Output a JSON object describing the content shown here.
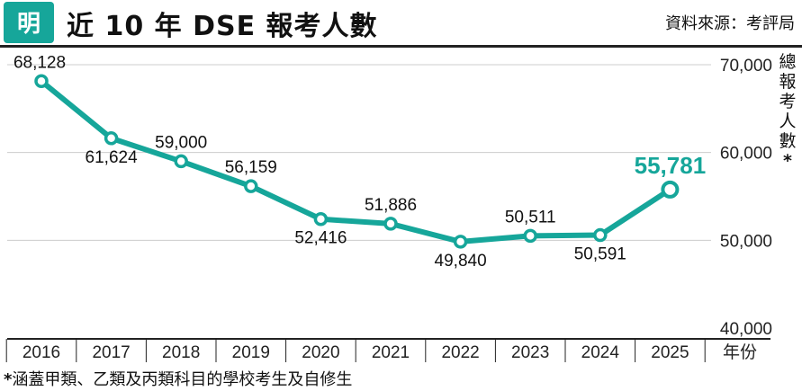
{
  "header": {
    "logo_char": "明",
    "title": "近 10 年 DSE 報考人數",
    "source": "資料來源：考評局"
  },
  "colors": {
    "accent": "#16a69a",
    "logo_bg": "#16a69a",
    "axis": "#222222",
    "gridline": "#cccccc"
  },
  "footnote": {
    "star": "*",
    "text": "涵蓋甲類、乙類及丙類科目的學校考生及自修生"
  },
  "chart_data": {
    "type": "line",
    "title": "近 10 年 DSE 報考人數",
    "xlabel": "年份",
    "ylabel": "總報考人數",
    "ylabel_chars": [
      "總",
      "報",
      "考",
      "人",
      "數",
      "*"
    ],
    "ylim": [
      40000,
      70000
    ],
    "yticks": [
      40000,
      50000,
      60000,
      70000
    ],
    "ytick_labels": [
      "40,000",
      "50,000",
      "60,000",
      "70,000"
    ],
    "grid": true,
    "categories": [
      "2016",
      "2017",
      "2018",
      "2019",
      "2020",
      "2021",
      "2022",
      "2023",
      "2024",
      "2025"
    ],
    "series": [
      {
        "name": "總報考人數",
        "values": [
          68128,
          61624,
          59000,
          56159,
          52416,
          51886,
          49840,
          50511,
          50591,
          55781
        ],
        "labels": [
          "68,128",
          "61,624",
          "59,000",
          "56,159",
          "52,416",
          "51,886",
          "49,840",
          "50,511",
          "50,591",
          "55,781"
        ]
      }
    ]
  }
}
